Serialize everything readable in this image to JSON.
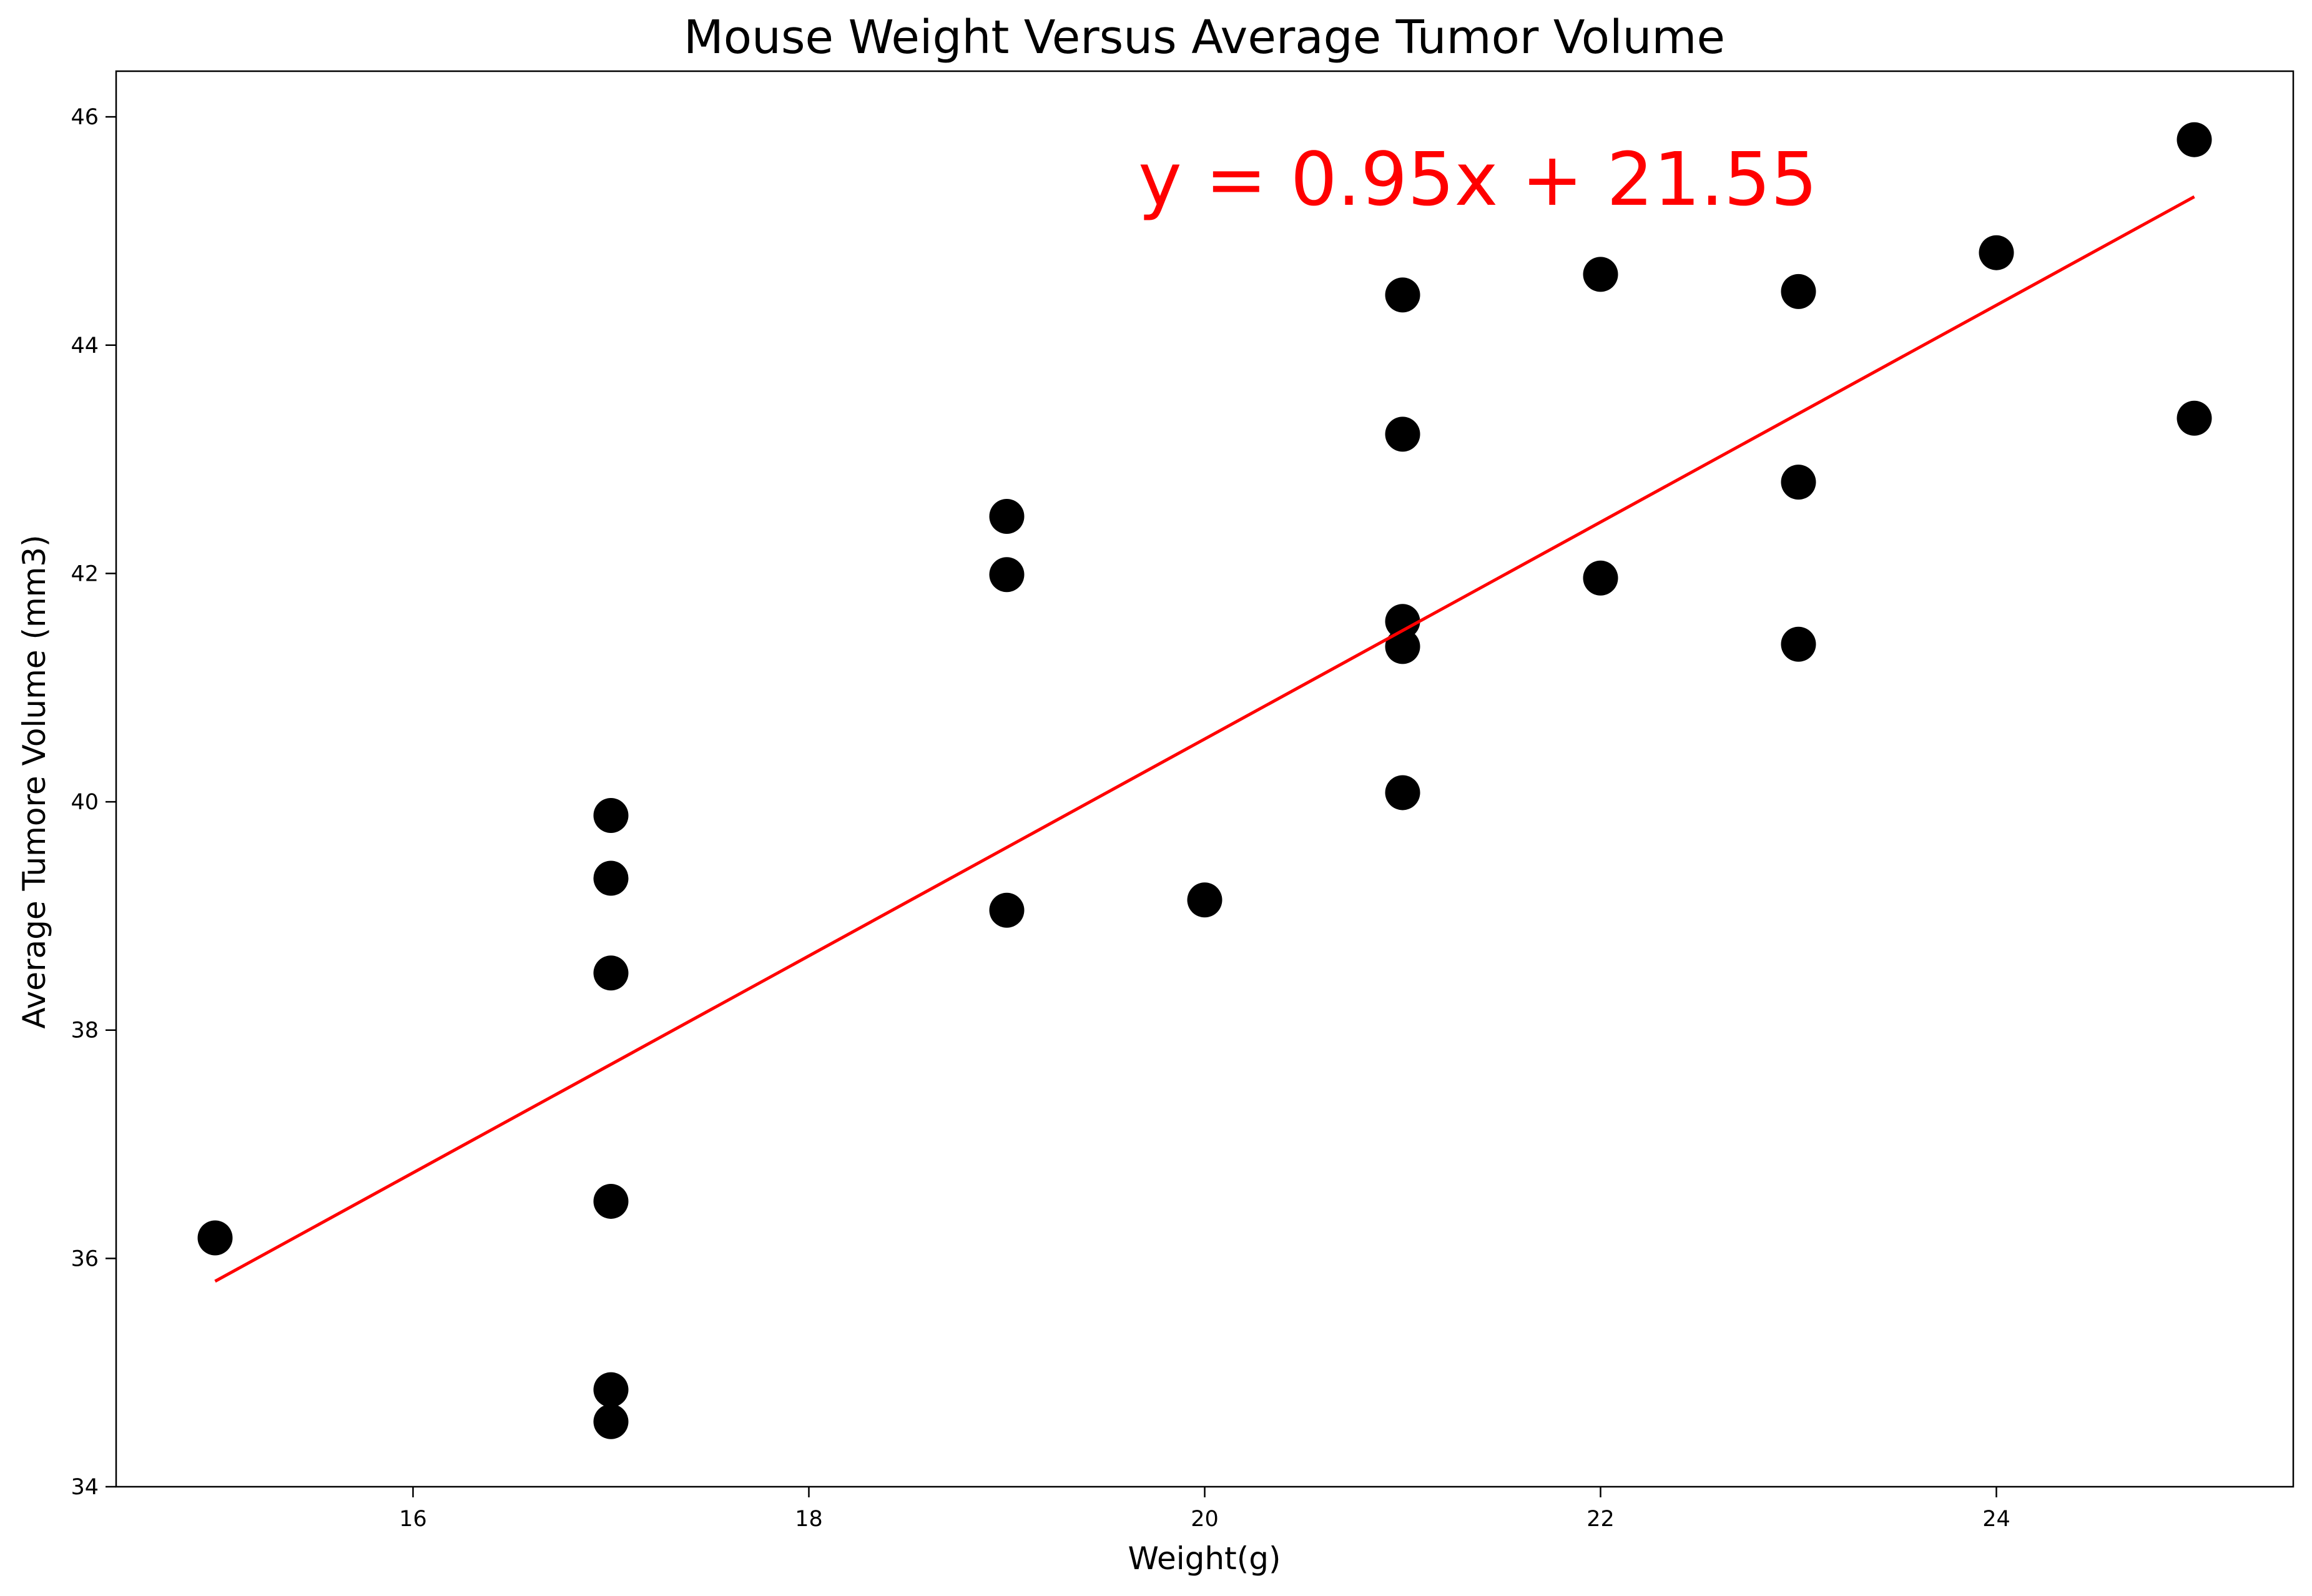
{
  "chart_data": {
    "type": "scatter",
    "title": "Mouse Weight Versus Average Tumor Volume",
    "xlabel": "Weight(g)",
    "ylabel": "Average Tumore Volume (mm3)",
    "xlim": [
      14.5,
      25.5
    ],
    "ylim": [
      34,
      46.4
    ],
    "xticks": [
      16,
      18,
      20,
      22,
      24
    ],
    "yticks": [
      34,
      36,
      38,
      40,
      42,
      44,
      46
    ],
    "grid": false,
    "marker_color": "#000000",
    "line_color": "#ff0000",
    "series": [
      {
        "points": [
          {
            "x": 15,
            "y": 36.18
          },
          {
            "x": 17,
            "y": 39.88
          },
          {
            "x": 17,
            "y": 39.33
          },
          {
            "x": 17,
            "y": 38.5
          },
          {
            "x": 17,
            "y": 36.5
          },
          {
            "x": 17,
            "y": 34.85
          },
          {
            "x": 17,
            "y": 34.57
          },
          {
            "x": 19,
            "y": 42.5
          },
          {
            "x": 19,
            "y": 41.99
          },
          {
            "x": 19,
            "y": 39.05
          },
          {
            "x": 20,
            "y": 39.14
          },
          {
            "x": 21,
            "y": 44.44
          },
          {
            "x": 21,
            "y": 43.22
          },
          {
            "x": 21,
            "y": 41.58
          },
          {
            "x": 21,
            "y": 41.36
          },
          {
            "x": 21,
            "y": 40.08
          },
          {
            "x": 22,
            "y": 44.62
          },
          {
            "x": 22,
            "y": 41.96
          },
          {
            "x": 23,
            "y": 44.47
          },
          {
            "x": 23,
            "y": 42.8
          },
          {
            "x": 23,
            "y": 41.38
          },
          {
            "x": 24,
            "y": 44.81
          },
          {
            "x": 25,
            "y": 45.8
          },
          {
            "x": 25,
            "y": 43.36
          }
        ]
      }
    ],
    "regression": {
      "slope": 0.95,
      "intercept": 21.55,
      "x_range": [
        15,
        25
      ],
      "label": "y = 0.95x + 21.55"
    }
  }
}
